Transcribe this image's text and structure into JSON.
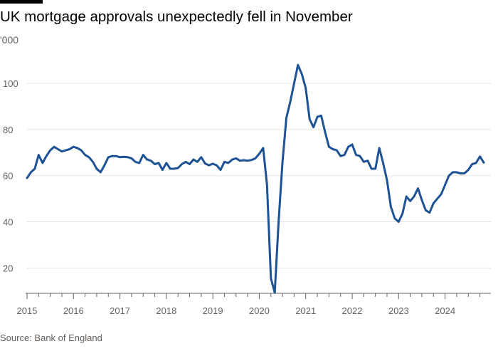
{
  "title": "UK mortgage approvals unexpectedly fell in November",
  "unit_label": "'000",
  "source": "Source: Bank of England",
  "colors": {
    "line": "#1d5294",
    "grid": "#e6e2de",
    "axis": "#66605c"
  },
  "chart_data": {
    "type": "line",
    "title": "UK mortgage approvals unexpectedly fell in November",
    "ylabel": "'000",
    "xlabel": "",
    "ylim": [
      9,
      113
    ],
    "yticks": [
      20,
      40,
      60,
      80,
      100
    ],
    "xlim": [
      "2015-01",
      "2024-11"
    ],
    "xticks": [
      "2015",
      "2016",
      "2017",
      "2018",
      "2019",
      "2020",
      "2021",
      "2022",
      "2023",
      "2024"
    ],
    "grid": true,
    "series": [
      {
        "points": [
          [
            "2015-01",
            59
          ],
          [
            "2015-02",
            61.5
          ],
          [
            "2015-03",
            63
          ],
          [
            "2015-04",
            69
          ],
          [
            "2015-05",
            65.5
          ],
          [
            "2015-06",
            68.5
          ],
          [
            "2015-07",
            71
          ],
          [
            "2015-08",
            72.5
          ],
          [
            "2015-09",
            71.5
          ],
          [
            "2015-10",
            70.5
          ],
          [
            "2015-11",
            71
          ],
          [
            "2015-12",
            71.5
          ],
          [
            "2016-01",
            72.5
          ],
          [
            "2016-02",
            72
          ],
          [
            "2016-03",
            71
          ],
          [
            "2016-04",
            69
          ],
          [
            "2016-05",
            68
          ],
          [
            "2016-06",
            66
          ],
          [
            "2016-07",
            63
          ],
          [
            "2016-08",
            61.5
          ],
          [
            "2016-09",
            64.5
          ],
          [
            "2016-10",
            68
          ],
          [
            "2016-11",
            68.5
          ],
          [
            "2016-12",
            68.5
          ],
          [
            "2017-01",
            68
          ],
          [
            "2017-02",
            68.2
          ],
          [
            "2017-03",
            68
          ],
          [
            "2017-04",
            67.5
          ],
          [
            "2017-05",
            66
          ],
          [
            "2017-06",
            65.5
          ],
          [
            "2017-07",
            69
          ],
          [
            "2017-08",
            67
          ],
          [
            "2017-09",
            66.5
          ],
          [
            "2017-10",
            65
          ],
          [
            "2017-11",
            65.5
          ],
          [
            "2017-12",
            62.5
          ],
          [
            "2018-01",
            65.5
          ],
          [
            "2018-02",
            63
          ],
          [
            "2018-03",
            63
          ],
          [
            "2018-04",
            63.3
          ],
          [
            "2018-05",
            65
          ],
          [
            "2018-06",
            66
          ],
          [
            "2018-07",
            65
          ],
          [
            "2018-08",
            67
          ],
          [
            "2018-09",
            66
          ],
          [
            "2018-10",
            68
          ],
          [
            "2018-11",
            65.3
          ],
          [
            "2018-12",
            64.5
          ],
          [
            "2019-01",
            65.2
          ],
          [
            "2019-02",
            64.5
          ],
          [
            "2019-03",
            62.5
          ],
          [
            "2019-04",
            66
          ],
          [
            "2019-05",
            65.5
          ],
          [
            "2019-06",
            67
          ],
          [
            "2019-07",
            67.5
          ],
          [
            "2019-08",
            66.5
          ],
          [
            "2019-09",
            66.7
          ],
          [
            "2019-10",
            66.5
          ],
          [
            "2019-11",
            66.8
          ],
          [
            "2019-12",
            67.5
          ],
          [
            "2020-01",
            69.5
          ],
          [
            "2020-02",
            72
          ],
          [
            "2020-03",
            56
          ],
          [
            "2020-04",
            15.5
          ],
          [
            "2020-05",
            9.3
          ],
          [
            "2020-06",
            40
          ],
          [
            "2020-07",
            66
          ],
          [
            "2020-08",
            85
          ],
          [
            "2020-09",
            92
          ],
          [
            "2020-10",
            100
          ],
          [
            "2020-11",
            108
          ],
          [
            "2020-12",
            104
          ],
          [
            "2021-01",
            98
          ],
          [
            "2021-02",
            84.5
          ],
          [
            "2021-03",
            81
          ],
          [
            "2021-04",
            85.5
          ],
          [
            "2021-05",
            86
          ],
          [
            "2021-06",
            79
          ],
          [
            "2021-07",
            72.5
          ],
          [
            "2021-08",
            71.5
          ],
          [
            "2021-09",
            71
          ],
          [
            "2021-10",
            68.5
          ],
          [
            "2021-11",
            69
          ],
          [
            "2021-12",
            72.5
          ],
          [
            "2022-01",
            73.5
          ],
          [
            "2022-02",
            69
          ],
          [
            "2022-03",
            68.5
          ],
          [
            "2022-04",
            66
          ],
          [
            "2022-05",
            66.5
          ],
          [
            "2022-06",
            63
          ],
          [
            "2022-07",
            63
          ],
          [
            "2022-08",
            72
          ],
          [
            "2022-09",
            65.5
          ],
          [
            "2022-10",
            58
          ],
          [
            "2022-11",
            46.5
          ],
          [
            "2022-12",
            41.5
          ],
          [
            "2023-01",
            40
          ],
          [
            "2023-02",
            43.5
          ],
          [
            "2023-03",
            51
          ],
          [
            "2023-04",
            49
          ],
          [
            "2023-05",
            51
          ],
          [
            "2023-06",
            54.5
          ],
          [
            "2023-07",
            49.5
          ],
          [
            "2023-08",
            45
          ],
          [
            "2023-09",
            44
          ],
          [
            "2023-10",
            48
          ],
          [
            "2023-11",
            50
          ],
          [
            "2023-12",
            52
          ],
          [
            "2024-01",
            56
          ],
          [
            "2024-02",
            60
          ],
          [
            "2024-03",
            61.5
          ],
          [
            "2024-04",
            61.5
          ],
          [
            "2024-05",
            61
          ],
          [
            "2024-06",
            61
          ],
          [
            "2024-07",
            62.5
          ],
          [
            "2024-08",
            65
          ],
          [
            "2024-09",
            65.5
          ],
          [
            "2024-10",
            68.3
          ],
          [
            "2024-11",
            65.7
          ]
        ]
      }
    ]
  }
}
